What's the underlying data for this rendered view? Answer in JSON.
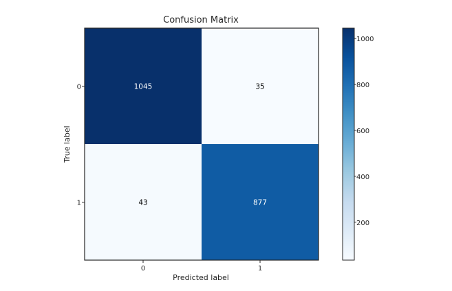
{
  "chart_data": {
    "type": "heatmap",
    "title": "Confusion Matrix",
    "xlabel": "Predicted label",
    "ylabel": "True label",
    "x_categories": [
      "0",
      "1"
    ],
    "y_categories": [
      "0",
      "1"
    ],
    "values": [
      [
        1045,
        35
      ],
      [
        43,
        877
      ]
    ],
    "colormap": "Blues",
    "colorbar": {
      "min": 35,
      "max": 1045,
      "ticks": [
        200,
        400,
        600,
        800,
        1000
      ]
    },
    "grid": false,
    "legend": "colorbar-right"
  },
  "colors": {
    "low": "#f7fbff",
    "high": "#08306b",
    "text_on_dark": "#ffffff",
    "text_on_light": "#000000"
  }
}
